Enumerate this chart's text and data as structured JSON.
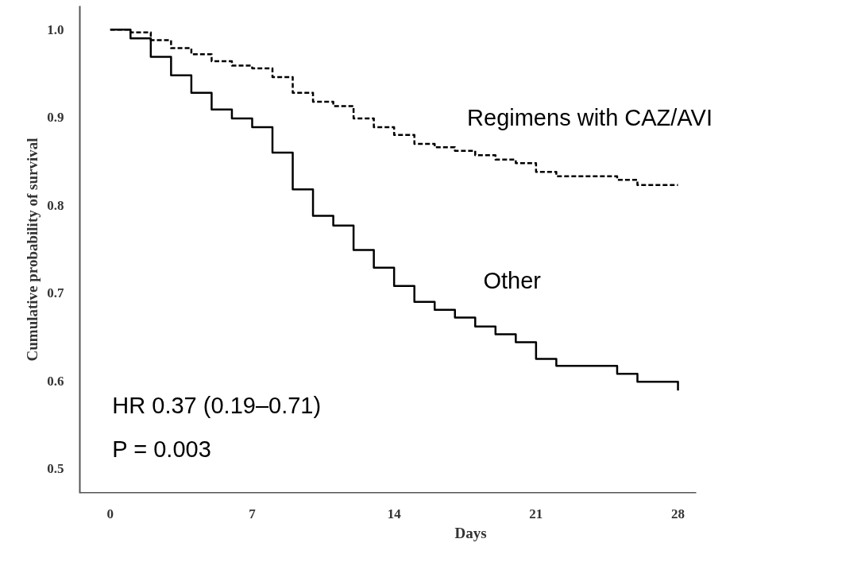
{
  "chart_data": {
    "type": "step",
    "xlabel": "Days",
    "ylabel": "Cumulative probability of survival",
    "xlim": [
      -1.5,
      28.9
    ],
    "ylim": [
      0.472,
      1.027
    ],
    "xticks": [
      0,
      7,
      14,
      21,
      28
    ],
    "yticks": [
      0.5,
      0.6,
      0.7,
      0.8,
      0.9,
      {
        "value": 1.0,
        "label": "1.0"
      }
    ],
    "grid": false,
    "legend": false,
    "marker": "none",
    "series": [
      {
        "name": "Regimens with CAZ/AVI",
        "color": "#000000",
        "line_style": "dashed",
        "x": [
          0,
          1,
          2,
          3,
          4,
          5,
          6,
          7,
          8,
          9,
          10,
          11,
          12,
          13,
          14,
          15,
          16,
          17,
          18,
          19,
          20,
          21,
          22,
          25,
          26,
          28
        ],
        "values": [
          1.0,
          0.997,
          0.988,
          0.979,
          0.972,
          0.964,
          0.959,
          0.956,
          0.946,
          0.928,
          0.918,
          0.913,
          0.899,
          0.889,
          0.88,
          0.87,
          0.866,
          0.862,
          0.857,
          0.852,
          0.848,
          0.838,
          0.833,
          0.829,
          0.823,
          0.823
        ]
      },
      {
        "name": "Other",
        "color": "#000000",
        "line_style": "solid",
        "x": [
          0,
          1,
          2,
          3,
          4,
          5,
          6,
          7,
          8,
          9,
          10,
          11,
          12,
          13,
          14,
          15,
          16,
          17,
          18,
          19,
          20,
          21,
          22,
          25,
          26,
          28
        ],
        "values": [
          1.0,
          0.99,
          0.969,
          0.948,
          0.928,
          0.909,
          0.899,
          0.889,
          0.86,
          0.818,
          0.788,
          0.777,
          0.749,
          0.729,
          0.708,
          0.69,
          0.681,
          0.672,
          0.662,
          0.653,
          0.644,
          0.625,
          0.617,
          0.608,
          0.599,
          0.589
        ]
      }
    ],
    "annotations": [
      "HR  0.37 (0.19–0.71)",
      " P = 0.003"
    ]
  }
}
